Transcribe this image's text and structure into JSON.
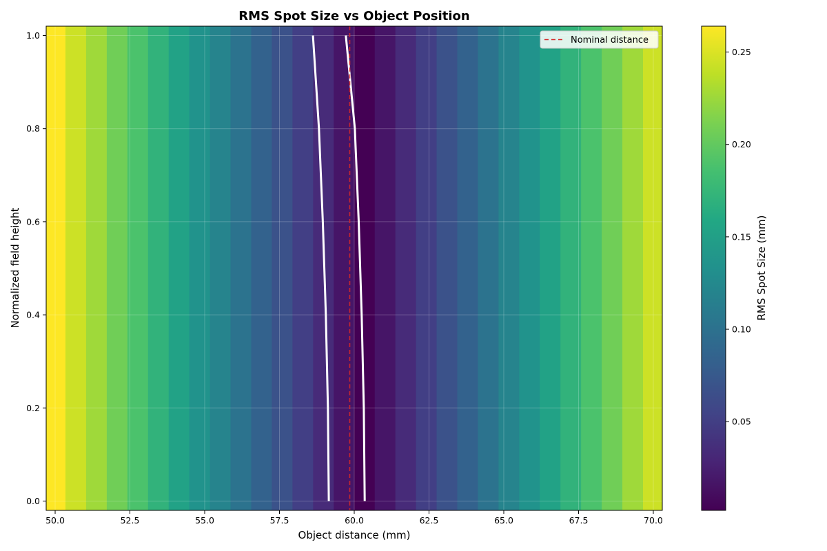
{
  "chart_data": {
    "type": "heatmap",
    "title": "RMS Spot Size vs Object Position",
    "xlabel": "Object distance (mm)",
    "ylabel": "Normalized field height",
    "colorbar_label": "RMS Spot Size (mm)",
    "colormap": "viridis",
    "xlim": [
      49.7,
      70.3
    ],
    "ylim": [
      -0.02,
      1.02
    ],
    "clim": [
      0.002,
      0.264
    ],
    "x_ticks": [
      50.0,
      52.5,
      55.0,
      57.5,
      60.0,
      62.5,
      65.0,
      67.5,
      70.0
    ],
    "x_tick_labels": [
      "50.0",
      "52.5",
      "55.0",
      "57.5",
      "60.0",
      "62.5",
      "65.0",
      "67.5",
      "70.0"
    ],
    "y_ticks": [
      0.0,
      0.2,
      0.4,
      0.6,
      0.8,
      1.0
    ],
    "y_tick_labels": [
      "0.0",
      "0.2",
      "0.4",
      "0.6",
      "0.8",
      "1.0"
    ],
    "colorbar_ticks": [
      0.05,
      0.1,
      0.15,
      0.2,
      0.25
    ],
    "colorbar_tick_labels": [
      "0.05",
      "0.10",
      "0.15",
      "0.20",
      "0.25"
    ],
    "grid": true,
    "legend_position": "top-right",
    "columns_x": [
      50.0,
      50.69,
      51.38,
      52.07,
      52.76,
      53.45,
      54.14,
      54.83,
      55.52,
      56.21,
      56.9,
      57.59,
      58.28,
      58.97,
      59.66,
      60.34,
      61.03,
      61.72,
      62.41,
      63.1,
      63.79,
      64.48,
      65.17,
      65.86,
      66.55,
      67.24,
      67.93,
      68.62,
      69.31,
      70.0
    ],
    "columns_value": [
      0.264,
      0.244,
      0.226,
      0.207,
      0.189,
      0.171,
      0.153,
      0.136,
      0.119,
      0.102,
      0.084,
      0.068,
      0.051,
      0.034,
      0.017,
      0.002,
      0.017,
      0.034,
      0.051,
      0.068,
      0.084,
      0.102,
      0.119,
      0.136,
      0.153,
      0.171,
      0.189,
      0.207,
      0.226,
      0.244
    ],
    "contours": [
      {
        "color": "#ffffff",
        "points": [
          [
            59.15,
            0.0
          ],
          [
            59.12,
            0.2
          ],
          [
            59.05,
            0.4
          ],
          [
            58.95,
            0.6
          ],
          [
            58.82,
            0.8
          ],
          [
            58.62,
            1.0
          ]
        ]
      },
      {
        "color": "#ffffff",
        "points": [
          [
            60.35,
            0.0
          ],
          [
            60.32,
            0.2
          ],
          [
            60.25,
            0.4
          ],
          [
            60.15,
            0.6
          ],
          [
            60.02,
            0.8
          ],
          [
            59.72,
            1.0
          ]
        ]
      }
    ],
    "series": [
      {
        "name": "Nominal distance",
        "type": "vline",
        "x": 59.85,
        "color": "#d62728",
        "style": "dashed"
      }
    ]
  }
}
